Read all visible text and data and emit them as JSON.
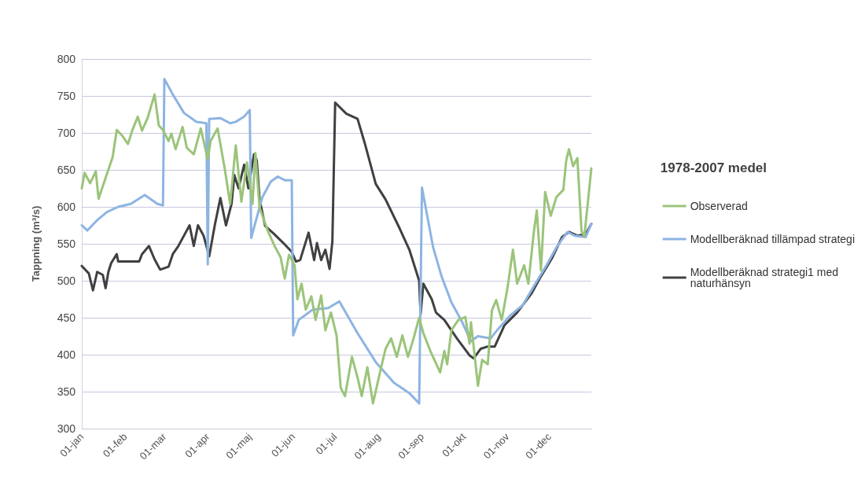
{
  "chart_data": {
    "type": "line",
    "ylabel": "Tappning (m³/s)",
    "legend_title": "1978-2007 medel",
    "legend": "right",
    "grid": "y",
    "ylim": [
      300,
      800
    ],
    "yticks": [
      300,
      350,
      400,
      450,
      500,
      550,
      600,
      650,
      700,
      750,
      800
    ],
    "xlim": [
      "--01-01",
      "--12-31"
    ],
    "xticks": [
      {
        "value": "--01-01",
        "label": "01-jan"
      },
      {
        "value": "--02-01",
        "label": "01-feb"
      },
      {
        "value": "--03-01",
        "label": "01-mar"
      },
      {
        "value": "--04-01",
        "label": "01-apr"
      },
      {
        "value": "--05-01",
        "label": "01-maj"
      },
      {
        "value": "--06-01",
        "label": "01-jun"
      },
      {
        "value": "--07-01",
        "label": "01-jul"
      },
      {
        "value": "--08-01",
        "label": "01-aug"
      },
      {
        "value": "--09-01",
        "label": "01-sep"
      },
      {
        "value": "--10-01",
        "label": "01-okt"
      },
      {
        "value": "--11-01",
        "label": "01-nov"
      },
      {
        "value": "--12-01",
        "label": "01-dec"
      }
    ],
    "series": [
      {
        "name": "Observerad",
        "color": "#9bc47a",
        "x": [
          "--01-01",
          "--01-03",
          "--01-07",
          "--01-11",
          "--01-13",
          "--01-18",
          "--01-23",
          "--01-26",
          "--01-30",
          "--02-03",
          "--02-06",
          "--02-10",
          "--02-13",
          "--02-17",
          "--02-22",
          "--02-25",
          "--02-28",
          "--03-04",
          "--03-06",
          "--03-09",
          "--03-14",
          "--03-17",
          "--03-22",
          "--03-27",
          "--04-01",
          "--04-03",
          "--04-08",
          "--04-13",
          "--04-17",
          "--04-21",
          "--04-25",
          "--04-29",
          "--05-03",
          "--05-05",
          "--05-08",
          "--05-14",
          "--05-19",
          "--05-23",
          "--05-26",
          "--05-29",
          "--06-02",
          "--06-04",
          "--06-07",
          "--06-10",
          "--06-14",
          "--06-17",
          "--06-21",
          "--06-24",
          "--06-28",
          "--07-02",
          "--07-05",
          "--07-08",
          "--07-13",
          "--07-17",
          "--07-20",
          "--07-24",
          "--07-28",
          "--08-02",
          "--08-06",
          "--08-10",
          "--08-14",
          "--08-18",
          "--08-22",
          "--08-26",
          "--08-30",
          "--09-02",
          "--09-07",
          "--09-14",
          "--09-17",
          "--09-19",
          "--09-22",
          "--09-27",
          "--10-02",
          "--10-05",
          "--10-06",
          "--10-11",
          "--10-14",
          "--10-18",
          "--10-21",
          "--10-24",
          "--10-28",
          "--11-01",
          "--11-05",
          "--11-08",
          "--11-13",
          "--11-16",
          "--11-20",
          "--11-22",
          "--11-25",
          "--11-28",
          "--12-02",
          "--12-06",
          "--12-11",
          "--12-13",
          "--12-15",
          "--12-18",
          "--12-21",
          "--12-24",
          "--12-26",
          "--12-31"
        ],
        "values": [
          625,
          646,
          632,
          648,
          611,
          639,
          667,
          704,
          696,
          685,
          703,
          722,
          703,
          720,
          752,
          710,
          704,
          689,
          699,
          678,
          708,
          680,
          671,
          706,
          664,
          689,
          706,
          653,
          604,
          683,
          607,
          660,
          604,
          673,
          599,
          567,
          546,
          532,
          503,
          535,
          521,
          475,
          496,
          461,
          479,
          447,
          480,
          433,
          457,
          426,
          355,
          344,
          397,
          369,
          344,
          383,
          334,
          376,
          408,
          422,
          397,
          426,
          397,
          422,
          450,
          429,
          405,
          376,
          405,
          387,
          433,
          447,
          451,
          415,
          444,
          358,
          393,
          387,
          460,
          474,
          447,
          489,
          542,
          496,
          521,
          496,
          567,
          595,
          514,
          620,
          588,
          613,
          623,
          662,
          678,
          655,
          666,
          567,
          560,
          652
        ]
      },
      {
        "name": "Modellberäknad tillämpad strategi",
        "color": "#8db4e2",
        "x": [
          "--01-01",
          "--01-05",
          "--01-12",
          "--01-19",
          "--01-27",
          "--02-05",
          "--02-15",
          "--02-24",
          "--02-28",
          "--03-01",
          "--03-07",
          "--03-15",
          "--03-24",
          "--03-31",
          "--04-01",
          "--04-02",
          "--04-10",
          "--04-17",
          "--04-21",
          "--04-27",
          "--05-01",
          "--05-02",
          "--05-10",
          "--05-16",
          "--05-21",
          "--05-26",
          "--05-31",
          "--06-01",
          "--06-05",
          "--06-15",
          "--06-26",
          "--07-04",
          "--07-17",
          "--07-30",
          "--08-12",
          "--08-23",
          "--08-30",
          "--09-01",
          "--09-09",
          "--09-15",
          "--09-22",
          "--09-30",
          "--10-06",
          "--10-11",
          "--10-20",
          "--10-26",
          "--11-03",
          "--11-12",
          "--11-21",
          "--11-29",
          "--12-06",
          "--12-14",
          "--12-19",
          "--12-27",
          "--12-31"
        ],
        "values": [
          575,
          568,
          582,
          593,
          600,
          604,
          616,
          604,
          602,
          773,
          752,
          727,
          715,
          713,
          522,
          719,
          720,
          713,
          715,
          722,
          731,
          558,
          613,
          634,
          641,
          636,
          636,
          426,
          447,
          461,
          463,
          472,
          429,
          390,
          362,
          348,
          334,
          626,
          545,
          506,
          471,
          443,
          418,
          425,
          422,
          436,
          453,
          467,
          496,
          521,
          545,
          566,
          561,
          559,
          577
        ]
      },
      {
        "name": "Modellberäknad strategi1 med naturhänsyn",
        "color": "#404040",
        "x": [
          "--01-01",
          "--01-06",
          "--01-09",
          "--01-12",
          "--01-16",
          "--01-18",
          "--01-20",
          "--01-22",
          "--01-26",
          "--01-27",
          "--02-11",
          "--02-13",
          "--02-18",
          "--02-22",
          "--02-26",
          "--03-04",
          "--03-07",
          "--03-11",
          "--03-15",
          "--03-19",
          "--03-22",
          "--03-25",
          "--03-29",
          "--04-02",
          "--04-06",
          "--04-10",
          "--04-14",
          "--04-18",
          "--04-20",
          "--04-23",
          "--04-27",
          "--04-30",
          "--05-04",
          "--05-06",
          "--05-08",
          "--05-12",
          "--05-18",
          "--05-25",
          "--05-31",
          "--06-03",
          "--06-06",
          "--06-12",
          "--06-16",
          "--06-18",
          "--06-21",
          "--06-24",
          "--06-27",
          "--06-29",
          "--07-01",
          "--07-09",
          "--07-17",
          "--07-22",
          "--07-30",
          "--08-06",
          "--08-16",
          "--08-23",
          "--08-30",
          "--08-31",
          "--09-02",
          "--09-08",
          "--09-11",
          "--09-17",
          "--09-26",
          "--10-05",
          "--10-08",
          "--10-13",
          "--10-18",
          "--10-23",
          "--10-30",
          "--11-08",
          "--11-18",
          "--11-25",
          "--12-03",
          "--12-10",
          "--12-15",
          "--12-21",
          "--12-27",
          "--12-31"
        ],
        "values": [
          520,
          510,
          487,
          512,
          508,
          490,
          512,
          524,
          536,
          526,
          526,
          536,
          547,
          529,
          515,
          519,
          536,
          547,
          561,
          575,
          547,
          575,
          561,
          533,
          575,
          612,
          575,
          604,
          643,
          625,
          657,
          625,
          671,
          663,
          610,
          574,
          564,
          551,
          539,
          526,
          528,
          565,
          528,
          551,
          528,
          542,
          516,
          553,
          741,
          726,
          719,
          687,
          631,
          610,
          571,
          542,
          500,
          454,
          496,
          475,
          457,
          447,
          422,
          399,
          395,
          408,
          411,
          411,
          440,
          457,
          482,
          506,
          531,
          559,
          566,
          561,
          563,
          577
        ]
      }
    ]
  }
}
